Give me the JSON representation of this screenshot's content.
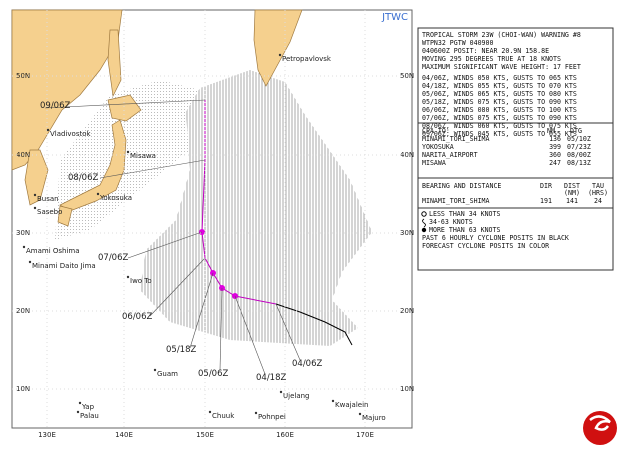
{
  "map": {
    "source": "JTWC",
    "lat_labels": [
      "50N",
      "40N",
      "30N",
      "20N",
      "10N"
    ],
    "lon_labels": [
      "130E",
      "140E",
      "150E",
      "160E",
      "170E"
    ],
    "places": [
      "Petropavlovsk",
      "Vladivostok",
      "Misawa",
      "Busan",
      "Sasebo",
      "Yokosuka",
      "Amami Oshima",
      "Minami Daito Jima",
      "Iwo To",
      "Guam",
      "Yap",
      "Palau",
      "Chuuk",
      "Pohnpei",
      "Ujelang",
      "Kwajalein",
      "Majuro"
    ],
    "track_labels": [
      "09/06Z",
      "08/06Z",
      "07/06Z",
      "06/06Z",
      "05/18Z",
      "05/06Z",
      "04/18Z",
      "04/06Z"
    ]
  },
  "warning": {
    "lines": [
      "TROPICAL STORM 23W (CHOI-WAN) WARNING #8",
      "WTPN32 PGTW 040900",
      "040600Z POSIT: NEAR 20.9N 158.8E",
      "MOVING 295 DEGREES TRUE AT 18 KNOTS",
      "MAXIMUM SIGNIFICANT WAVE HEIGHT: 17 FEET",
      "04/06Z, WINDS 050 KTS, GUSTS TO 065 KTS",
      "04/18Z, WINDS 055 KTS, GUSTS TO 070 KTS",
      "05/06Z, WINDS 065 KTS, GUSTS TO 080 KTS",
      "05/18Z, WINDS 075 KTS, GUSTS TO 090 KTS",
      "06/06Z, WINDS 080 KTS, GUSTS TO 100 KTS",
      "07/06Z, WINDS 075 KTS, GUSTS TO 090 KTS",
      "08/06Z, WINDS 060 KTS, GUSTS TO 075 KTS",
      "09/06Z, WINDS 045 KTS, GUSTS TO 055 KTS"
    ]
  },
  "cpa": {
    "header": [
      "CPA TO:",
      "NM",
      "DTG"
    ],
    "rows": [
      [
        "MINAMI_TORI_SHIMA",
        136,
        "05/10Z"
      ],
      [
        "YOKOSUKA",
        399,
        "07/23Z"
      ],
      [
        "NARITA_AIRPORT",
        360,
        "08/00Z"
      ],
      [
        "MISAWA",
        247,
        "08/13Z"
      ]
    ]
  },
  "bearing": {
    "header": [
      "BEARING AND DISTANCE",
      "DIR",
      "DIST",
      "TAU"
    ],
    "units": [
      "(NM)",
      "(HRS)"
    ],
    "row": [
      "MINAMI_TORI_SHIMA",
      191,
      141,
      24
    ]
  },
  "legend": {
    "items": [
      "LESS THAN 34 KNOTS",
      "34-63 KNOTS",
      "MORE THAN 63 KNOTS",
      "PAST 6 HOURLY CYCLONE POSITS IN BLACK",
      "FORECAST CYCLONE POSITS IN COLOR"
    ]
  }
}
